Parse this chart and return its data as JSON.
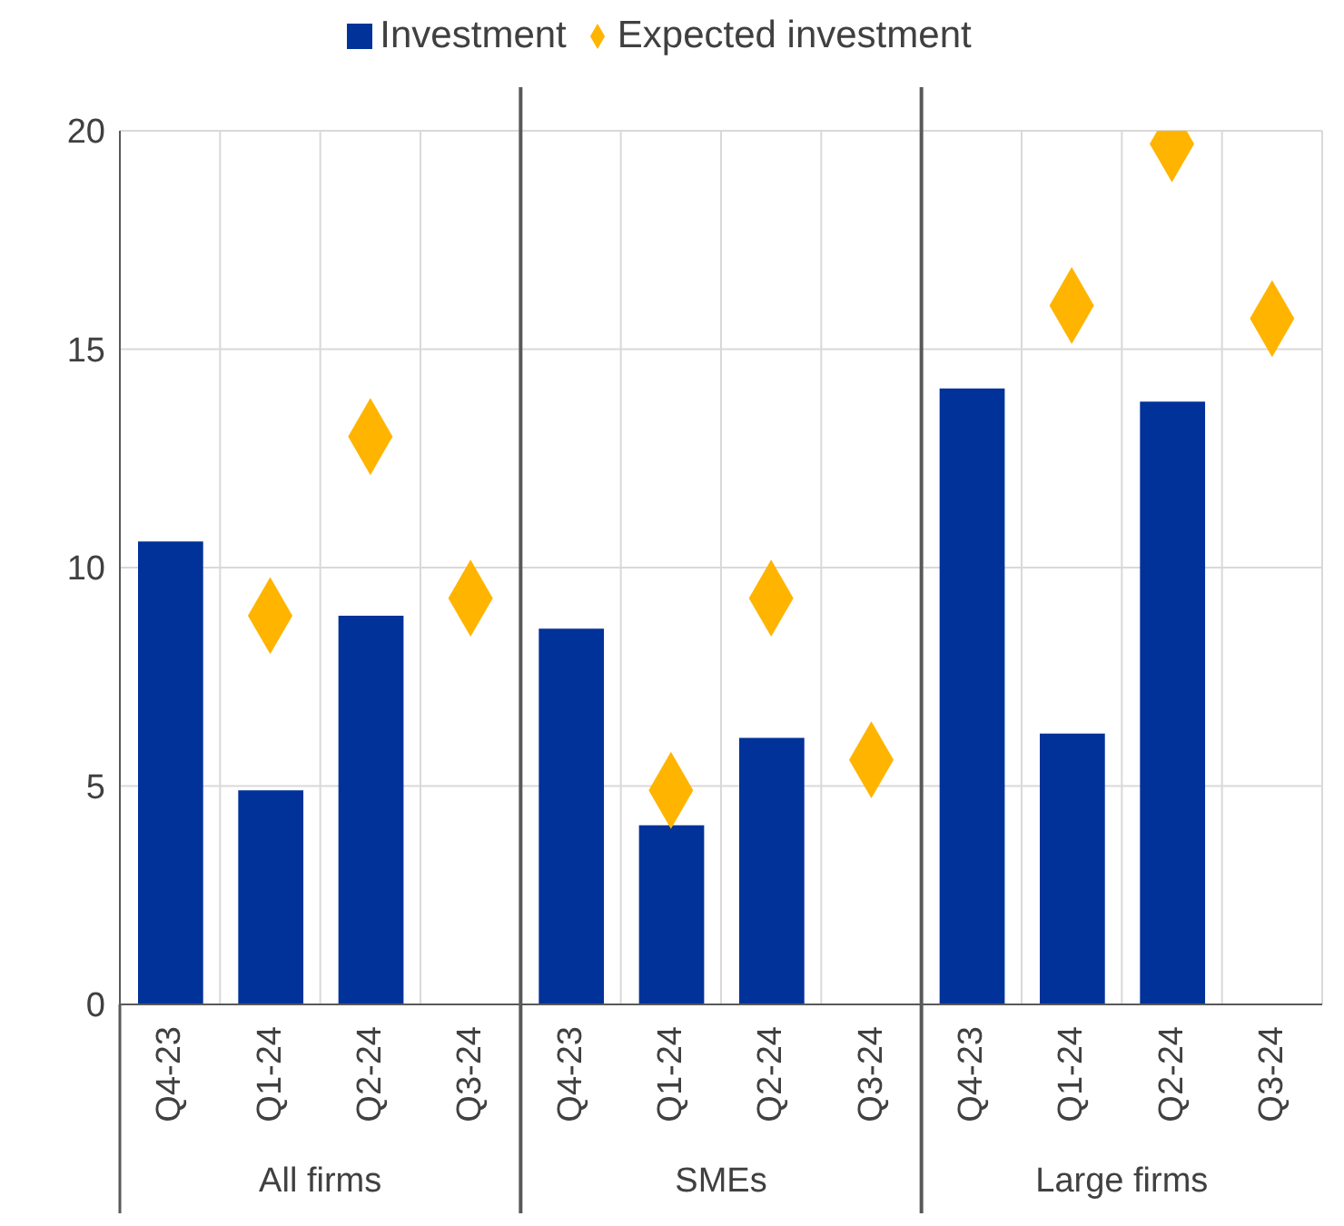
{
  "chart_data": {
    "type": "bar",
    "categories": [
      "Q4-23",
      "Q1-24",
      "Q2-24",
      "Q3-24",
      "Q4-23",
      "Q1-24",
      "Q2-24",
      "Q3-24",
      "Q4-23",
      "Q1-24",
      "Q2-24",
      "Q3-24"
    ],
    "series": [
      {
        "name": "Investment",
        "color": "#003299",
        "values": [
          10.6,
          4.9,
          8.9,
          null,
          8.6,
          4.1,
          6.1,
          null,
          14.1,
          6.2,
          13.8,
          null
        ]
      },
      {
        "name": "Expected investment",
        "type": "scatter",
        "marker": "diamond",
        "color": "#ffb400",
        "values": [
          null,
          8.9,
          13.0,
          9.3,
          null,
          4.9,
          9.3,
          5.6,
          null,
          16.0,
          19.7,
          15.7
        ]
      }
    ],
    "annotations": [
      "All firms",
      "SMEs",
      "Large firms"
    ],
    "ylim": [
      0,
      20
    ],
    "yticks": [
      0,
      5,
      10,
      15,
      20
    ],
    "grid": true,
    "legend": "top"
  }
}
